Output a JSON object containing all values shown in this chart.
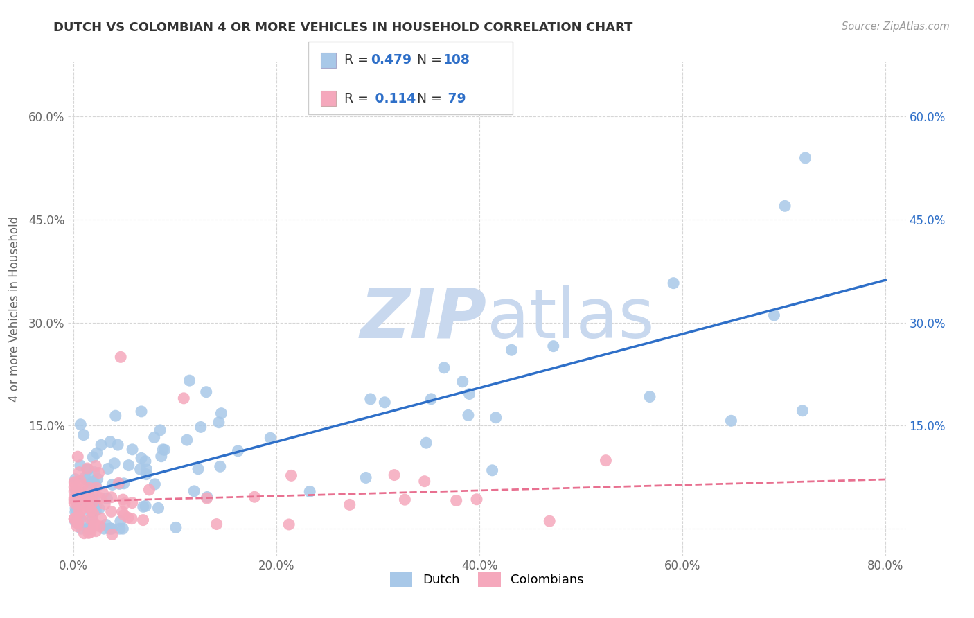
{
  "title": "DUTCH VS COLOMBIAN 4 OR MORE VEHICLES IN HOUSEHOLD CORRELATION CHART",
  "source": "Source: ZipAtlas.com",
  "ylabel": "4 or more Vehicles in Household",
  "xlabel_ticks": [
    "0.0%",
    "20.0%",
    "40.0%",
    "60.0%",
    "80.0%"
  ],
  "xlabel_vals": [
    0.0,
    0.2,
    0.4,
    0.6,
    0.8
  ],
  "ylabel_ticks_left": [
    "",
    "15.0%",
    "30.0%",
    "45.0%",
    "60.0%"
  ],
  "ylabel_ticks_right": [
    "",
    "15.0%",
    "30.0%",
    "45.0%",
    "60.0%"
  ],
  "ylabel_vals": [
    0.0,
    0.15,
    0.3,
    0.45,
    0.6
  ],
  "xlim": [
    -0.005,
    0.82
  ],
  "ylim": [
    -0.04,
    0.68
  ],
  "dutch_R": 0.479,
  "dutch_N": 108,
  "colombian_R": 0.114,
  "colombian_N": 79,
  "dutch_color": "#a8c8e8",
  "colombian_color": "#f5a8bc",
  "dutch_line_color": "#2e6fc8",
  "colombian_line_color": "#e87090",
  "text_color_dark": "#333333",
  "text_color_blue": "#2e6fc8",
  "title_color": "#333333",
  "watermark_color_zip": "#c8d8ee",
  "watermark_color_atlas": "#c8d8ee",
  "background_color": "#ffffff",
  "grid_color": "#cccccc",
  "right_tick_color": "#2e6fc8",
  "legend_R_label_color": "#444444",
  "legend_val_color": "#2e6fc8"
}
